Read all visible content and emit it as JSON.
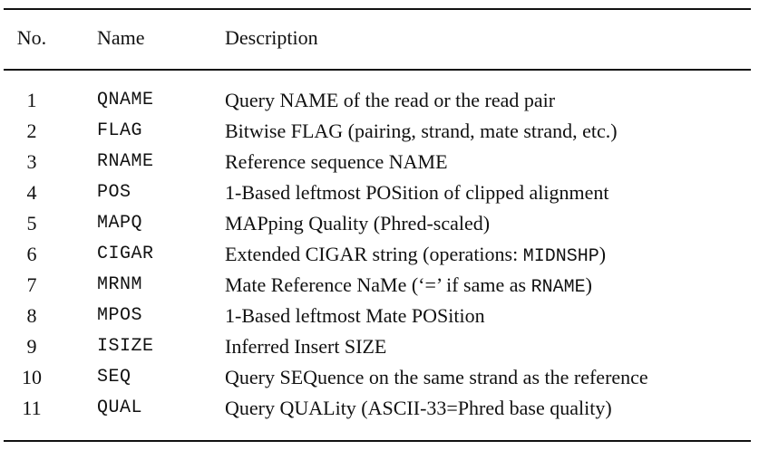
{
  "table": {
    "headers": {
      "no": "No.",
      "name": "Name",
      "description": "Description"
    },
    "rows": [
      {
        "no": "1",
        "name": "QNAME",
        "description": [
          {
            "text": "Query NAME of the read or the read pair"
          }
        ]
      },
      {
        "no": "2",
        "name": "FLAG",
        "description": [
          {
            "text": "Bitwise FLAG (pairing, strand, mate strand, etc.)"
          }
        ]
      },
      {
        "no": "3",
        "name": "RNAME",
        "description": [
          {
            "text": "Reference sequence NAME"
          }
        ]
      },
      {
        "no": "4",
        "name": "POS",
        "description": [
          {
            "text": "1-Based leftmost POSition of clipped alignment"
          }
        ]
      },
      {
        "no": "5",
        "name": "MAPQ",
        "description": [
          {
            "text": "MAPping Quality (Phred-scaled)"
          }
        ]
      },
      {
        "no": "6",
        "name": "CIGAR",
        "description": [
          {
            "text": "Extended CIGAR string (operations: "
          },
          {
            "text": "MIDNSHP",
            "mono": true
          },
          {
            "text": ")"
          }
        ]
      },
      {
        "no": "7",
        "name": "MRNM",
        "description": [
          {
            "text": "Mate Reference NaMe (‘=’ if same as "
          },
          {
            "text": "RNAME",
            "mono": true
          },
          {
            "text": ")"
          }
        ]
      },
      {
        "no": "8",
        "name": "MPOS",
        "description": [
          {
            "text": "1-Based leftmost Mate POSition"
          }
        ]
      },
      {
        "no": "9",
        "name": "ISIZE",
        "description": [
          {
            "text": "Inferred Insert SIZE"
          }
        ]
      },
      {
        "no": "10",
        "name": "SEQ",
        "description": [
          {
            "text": "Query SEQuence on the same strand as the reference"
          }
        ]
      },
      {
        "no": "11",
        "name": "QUAL",
        "description": [
          {
            "text": "Query QUALity (ASCII-33=Phred base quality)"
          }
        ]
      }
    ]
  }
}
